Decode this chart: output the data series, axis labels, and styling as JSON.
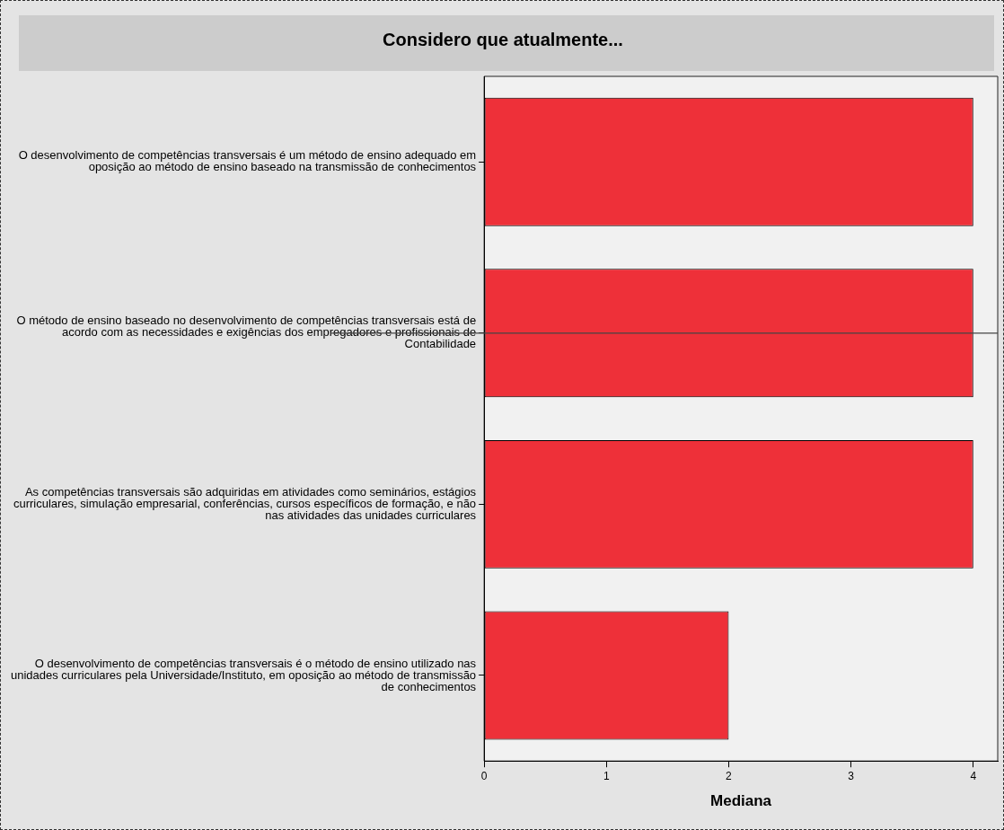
{
  "chart_data": {
    "type": "bar",
    "orientation": "horizontal",
    "title": "Considero que atualmente...",
    "xlabel": "Mediana",
    "categories": [
      "O desenvolvimento de competências transversais é um método de ensino adequado em oposição ao método de ensino baseado na transmissão de conhecimentos",
      "O método de ensino baseado no desenvolvimento de competências transversais está de acordo com as necessidades e exigências dos empregadores e profissionais de Contabilidade",
      "As competências transversais são adquiridas em atividades como seminários, estágios curriculares, simulação empresarial, conferências, cursos específicos de formação, e não nas atividades das unidades curriculares",
      "O desenvolvimento de competências transversais é o método de ensino utilizado nas unidades curriculares pela Universidade/Instituto, em oposição ao método de transmissão de conhecimentos"
    ],
    "values": [
      4,
      4,
      4,
      2
    ],
    "color": "#ee3039",
    "xlim": [
      0,
      4.2
    ],
    "xticks": [
      0,
      1,
      2,
      3,
      4
    ],
    "grid": false,
    "legend": false,
    "ref_lines": [
      {
        "axis": "y",
        "value": "O método de ensino baseado no desenvolvimento de competências transversais está de acordo com as necessidades e exigências dos empregadores e profissionais de Contabilidade",
        "color": "#444444"
      }
    ]
  }
}
